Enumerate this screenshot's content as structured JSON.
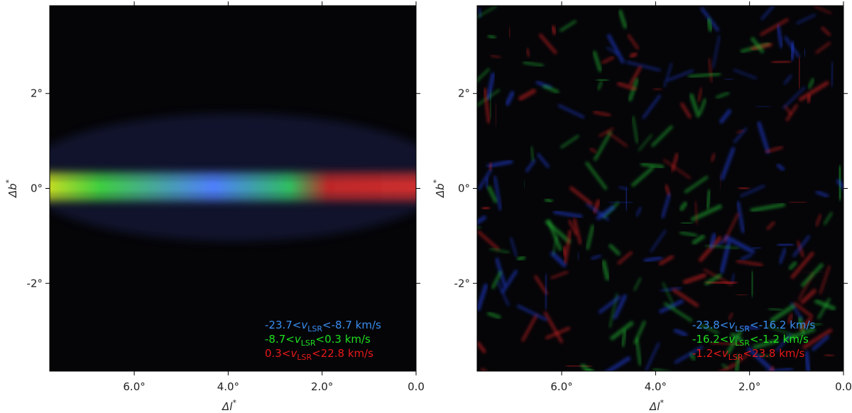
{
  "figure": {
    "panels": [
      {
        "xlabel": "Δl",
        "xlabel_sup": "*",
        "ylabel": "Δb",
        "ylabel_sup": "*",
        "xlim": [
          7.8,
          0
        ],
        "ylim": [
          -3.85,
          3.85
        ],
        "xticks": [
          {
            "value": 6,
            "label": "6.0°"
          },
          {
            "value": 4,
            "label": "4.0°"
          },
          {
            "value": 2,
            "label": "2.0°"
          },
          {
            "value": 0,
            "label": "0.0"
          }
        ],
        "yticks": [
          {
            "value": 2,
            "label": "2°"
          },
          {
            "value": 0,
            "label": "0°"
          },
          {
            "value": -2,
            "label": "-2°"
          }
        ],
        "legend": [
          {
            "pre": "-23.7<",
            "var": "v",
            "sub": "LSR",
            "post": "<-8.7 km/s",
            "color": "#3a8ef0"
          },
          {
            "pre": "-8.7<",
            "var": "v",
            "sub": "LSR",
            "post": "<0.3 km/s",
            "color": "#1ee01e"
          },
          {
            "pre": "0.3<",
            "var": "v",
            "sub": "LSR",
            "post": "<22.8 km/s",
            "color": "#e81818"
          }
        ]
      },
      {
        "xlabel": "Δl",
        "xlabel_sup": "*",
        "ylabel": "Δb",
        "ylabel_sup": "*",
        "xlim": [
          7.8,
          0
        ],
        "ylim": [
          -3.85,
          3.85
        ],
        "xticks": [
          {
            "value": 6,
            "label": "6.0°"
          },
          {
            "value": 4,
            "label": "4.0°"
          },
          {
            "value": 2,
            "label": "2.0°"
          },
          {
            "value": 0,
            "label": "0.0"
          }
        ],
        "yticks": [
          {
            "value": 2,
            "label": "2°"
          },
          {
            "value": 0,
            "label": "0°"
          },
          {
            "value": -2,
            "label": "-2°"
          }
        ],
        "legend": [
          {
            "pre": "-23.8<",
            "var": "v",
            "sub": "LSR",
            "post": "<-16.2 km/s",
            "color": "#3a8ef0"
          },
          {
            "pre": "-16.2<",
            "var": "v",
            "sub": "LSR",
            "post": "<-1.2 km/s",
            "color": "#1ee01e"
          },
          {
            "pre": "-1.2<",
            "var": "v",
            "sub": "LSR",
            "post": "<23.8 km/s",
            "color": "#e81818"
          }
        ]
      }
    ]
  }
}
